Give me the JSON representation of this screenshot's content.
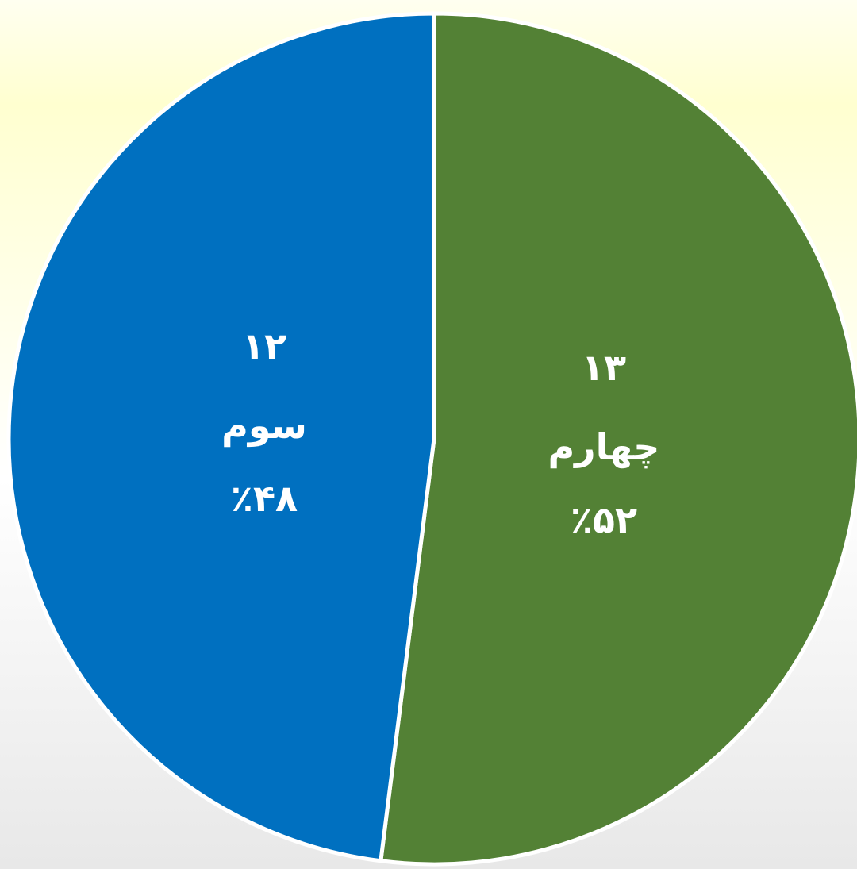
{
  "chart_data": {
    "type": "pie",
    "categories": [
      "چهارم",
      "سوم"
    ],
    "values": [
      13,
      12
    ],
    "value_labels": [
      "۱۳",
      "۱۲"
    ],
    "percent_labels": [
      "٪۵۲",
      "٪۴۸"
    ],
    "colors": [
      "#538135",
      "#0070c0"
    ]
  }
}
